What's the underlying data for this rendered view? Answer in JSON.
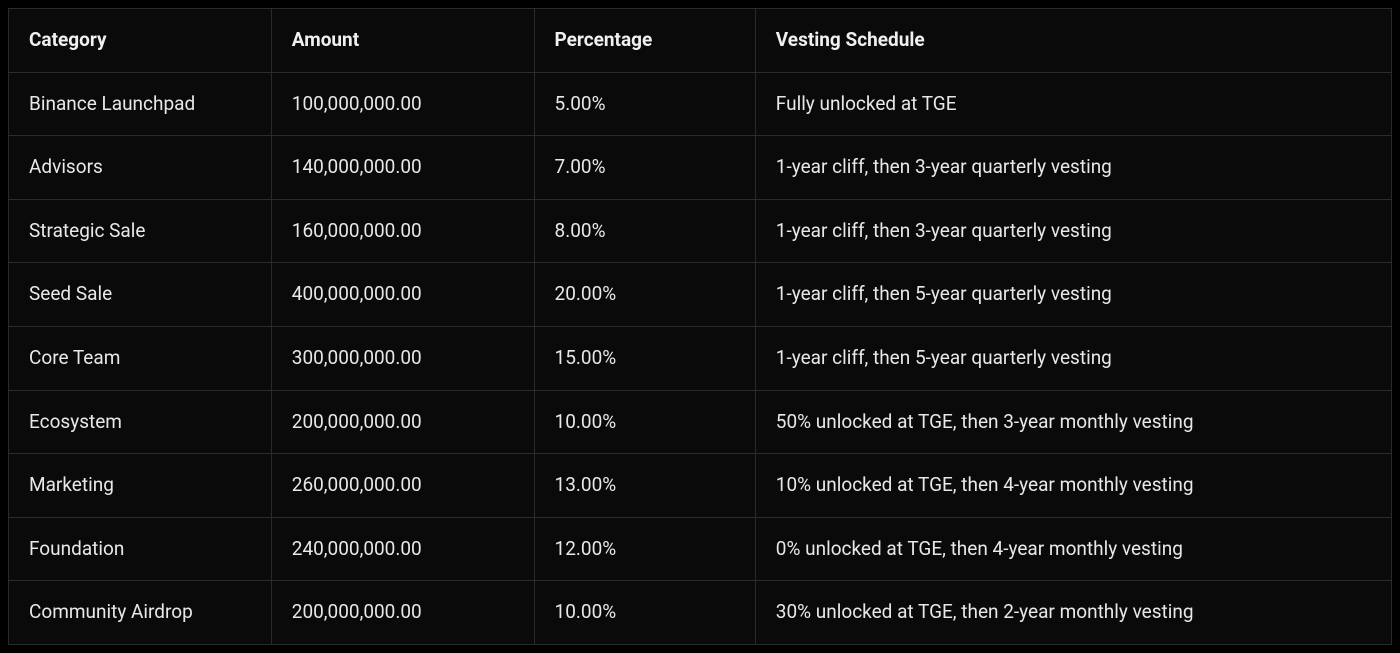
{
  "table": {
    "columns": [
      {
        "label": "Category",
        "class": "col-category"
      },
      {
        "label": "Amount",
        "class": "col-amount"
      },
      {
        "label": "Percentage",
        "class": "col-percentage"
      },
      {
        "label": "Vesting Schedule",
        "class": "col-vesting"
      }
    ],
    "rows": [
      {
        "category": "Binance Launchpad",
        "amount": "100,000,000.00",
        "percentage": "5.00%",
        "vesting": "Fully unlocked at TGE"
      },
      {
        "category": "Advisors",
        "amount": "140,000,000.00",
        "percentage": "7.00%",
        "vesting": "1-year cliff, then 3-year quarterly vesting"
      },
      {
        "category": "Strategic Sale",
        "amount": "160,000,000.00",
        "percentage": "8.00%",
        "vesting": "1-year cliff, then 3-year quarterly vesting"
      },
      {
        "category": "Seed Sale",
        "amount": "400,000,000.00",
        "percentage": "20.00%",
        "vesting": "1-year cliff, then 5-year quarterly vesting"
      },
      {
        "category": "Core Team",
        "amount": "300,000,000.00",
        "percentage": "15.00%",
        "vesting": "1-year cliff, then 5-year quarterly vesting"
      },
      {
        "category": "Ecosystem",
        "amount": "200,000,000.00",
        "percentage": "10.00%",
        "vesting": "50% unlocked at TGE, then 3-year monthly vesting"
      },
      {
        "category": "Marketing",
        "amount": "260,000,000.00",
        "percentage": "13.00%",
        "vesting": "10% unlocked at TGE, then 4-year monthly vesting"
      },
      {
        "category": "Foundation",
        "amount": "240,000,000.00",
        "percentage": "12.00%",
        "vesting": "0% unlocked at TGE, then 4-year monthly vesting"
      },
      {
        "category": "Community Airdrop",
        "amount": "200,000,000.00",
        "percentage": "10.00%",
        "vesting": "30% unlocked at TGE, then 2-year monthly vesting"
      }
    ],
    "styling": {
      "background_color": "#0a0a0a",
      "border_color": "#2a2a2a",
      "text_color": "#e8e8e8",
      "header_text_color": "#f0f0f0",
      "font_size": 19,
      "header_font_weight": 700,
      "cell_font_weight": 400,
      "cell_padding": "18px 20px",
      "column_widths": [
        "19%",
        "19%",
        "16%",
        "46%"
      ]
    }
  }
}
